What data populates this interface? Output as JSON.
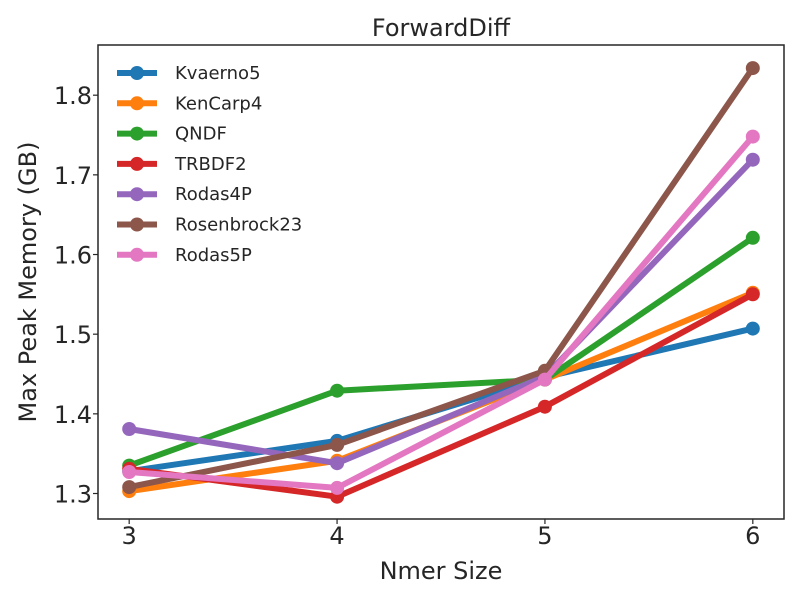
{
  "chart_data": {
    "type": "line",
    "title": "ForwardDiff",
    "xlabel": "Nmer Size",
    "ylabel": "Max Peak Memory (GB)",
    "x": [
      3,
      4,
      5,
      6
    ],
    "xticks": [
      "3",
      "4",
      "5",
      "6"
    ],
    "yticks": [
      "1.3",
      "1.4",
      "1.5",
      "1.6",
      "1.7",
      "1.8"
    ],
    "xlim": [
      2.85,
      6.15
    ],
    "ylim": [
      1.268,
      1.863
    ],
    "grid": false,
    "legend_position": "top-left",
    "series": [
      {
        "name": "Kvaerno5",
        "color": "#1f77b4",
        "values": [
          1.328,
          1.366,
          1.446,
          1.507
        ]
      },
      {
        "name": "KenCarp4",
        "color": "#ff7f0e",
        "values": [
          1.303,
          1.341,
          1.443,
          1.552
        ]
      },
      {
        "name": "QNDF",
        "color": "#2ca02c",
        "values": [
          1.335,
          1.429,
          1.443,
          1.621
        ]
      },
      {
        "name": "TRBDF2",
        "color": "#d62728",
        "values": [
          1.331,
          1.296,
          1.409,
          1.55
        ]
      },
      {
        "name": "Rodas4P",
        "color": "#9467bd",
        "values": [
          1.381,
          1.338,
          1.447,
          1.719
        ]
      },
      {
        "name": "Rosenbrock23",
        "color": "#8c564b",
        "values": [
          1.308,
          1.361,
          1.454,
          1.834
        ]
      },
      {
        "name": "Rodas5P",
        "color": "#e377c2",
        "values": [
          1.327,
          1.307,
          1.443,
          1.748
        ]
      }
    ]
  }
}
